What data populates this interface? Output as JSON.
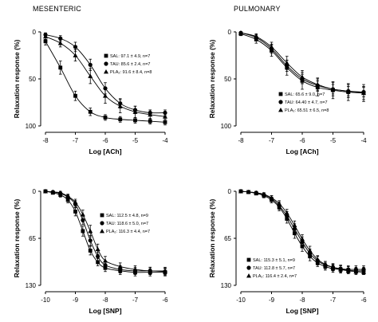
{
  "panel_titles": {
    "mesenteric": "MESENTERIC",
    "pulmonary": "PULMONARY"
  },
  "chart_data": [
    {
      "type": "line",
      "xlabel": "Log [ACh]",
      "ylabel": "Relaxation response (%)",
      "xlim": [
        -8,
        -4
      ],
      "ylim": [
        0,
        100
      ],
      "y_inverted": true,
      "xticks": [
        -8,
        -7,
        -6,
        -5,
        -4
      ],
      "yticks": [
        0,
        50,
        100
      ],
      "legend_position": "right-middle",
      "series": [
        {
          "name": "SAL: 97.1 ± 4.9, n=7",
          "marker": "square",
          "x": [
            -8,
            -7.5,
            -7,
            -6.5,
            -6,
            -5.5,
            -5,
            -4.5,
            -4
          ],
          "y": [
            10,
            38,
            68,
            85,
            91,
            93,
            94,
            95,
            96
          ],
          "err": [
            4,
            7,
            5,
            4,
            3,
            3,
            3,
            3,
            3
          ]
        },
        {
          "name": "TAU: 85.6 ± 2.4, n=7",
          "marker": "circle",
          "x": [
            -8,
            -7.5,
            -7,
            -6.5,
            -6,
            -5.5,
            -5,
            -4.5,
            -4
          ],
          "y": [
            3,
            7,
            16,
            35,
            60,
            76,
            83,
            86,
            86
          ],
          "err": [
            2,
            3,
            5,
            6,
            6,
            5,
            4,
            3,
            3
          ]
        },
        {
          "name": "PLA₂: 91.6 ± 8.4, n=8",
          "marker": "triangle",
          "x": [
            -8,
            -7.5,
            -7,
            -6.5,
            -6,
            -5.5,
            -5,
            -4.5,
            -4
          ],
          "y": [
            5,
            12,
            25,
            47,
            68,
            79,
            85,
            88,
            90
          ],
          "err": [
            3,
            4,
            6,
            8,
            8,
            7,
            6,
            5,
            5
          ]
        }
      ]
    },
    {
      "type": "line",
      "xlabel": "Log [ACh]",
      "ylabel": "Relaxation response (%)",
      "xlim": [
        -8,
        -4
      ],
      "ylim": [
        0,
        100
      ],
      "y_inverted": true,
      "xticks": [
        -8,
        -7,
        -6,
        -5,
        -4
      ],
      "yticks": [
        0,
        50,
        100
      ],
      "legend_position": "right-middle",
      "series": [
        {
          "name": "SAL: 65.6 ± 9.0, n=7",
          "marker": "square",
          "x": [
            -8,
            -7.5,
            -7,
            -6.5,
            -6,
            -5.5,
            -5,
            -4.5,
            -4
          ],
          "y": [
            2,
            8,
            20,
            38,
            52,
            59,
            62,
            64,
            65
          ],
          "err": [
            2,
            4,
            6,
            8,
            9,
            9,
            9,
            9,
            9
          ]
        },
        {
          "name": "TAU: 64.40 ± 4.7, n=7",
          "marker": "circle",
          "x": [
            -8,
            -7.5,
            -7,
            -6.5,
            -6,
            -5.5,
            -5,
            -4.5,
            -4
          ],
          "y": [
            1,
            6,
            18,
            36,
            50,
            57,
            61,
            63,
            64
          ],
          "err": [
            2,
            3,
            5,
            6,
            5,
            5,
            5,
            5,
            5
          ]
        },
        {
          "name": "PLA₂: 65.51 ± 6.5, n=8",
          "marker": "triangle",
          "x": [
            -8,
            -7.5,
            -7,
            -6.5,
            -6,
            -5.5,
            -5,
            -4.5,
            -4
          ],
          "y": [
            1,
            5,
            16,
            33,
            48,
            56,
            61,
            63,
            65
          ],
          "err": [
            2,
            3,
            5,
            7,
            7,
            7,
            7,
            7,
            7
          ]
        }
      ]
    },
    {
      "type": "line",
      "xlabel": "Log [SNP]",
      "ylabel": "Relaxation response (%)",
      "xlim": [
        -10,
        -6
      ],
      "ylim": [
        0,
        130
      ],
      "y_inverted": true,
      "xticks": [
        -10,
        -9,
        -8,
        -7,
        -6
      ],
      "yticks": [
        0,
        65,
        130
      ],
      "legend_position": "right-middle",
      "series": [
        {
          "name": "SAL: 112.5 ± 4.8, n=9",
          "marker": "square",
          "x": [
            -10,
            -9.75,
            -9.5,
            -9.25,
            -9,
            -8.75,
            -8.5,
            -8.25,
            -8,
            -7.5,
            -7,
            -6.5,
            -6
          ],
          "y": [
            0,
            2,
            5,
            12,
            28,
            55,
            82,
            98,
            106,
            110,
            112,
            112,
            112
          ],
          "err": [
            1,
            2,
            3,
            4,
            6,
            7,
            6,
            5,
            5,
            5,
            5,
            5,
            5
          ]
        },
        {
          "name": "TAU: 118.6 ± 5.0, n=7",
          "marker": "circle",
          "x": [
            -10,
            -9.75,
            -9.5,
            -9.25,
            -9,
            -8.75,
            -8.5,
            -8.25,
            -8,
            -7.5,
            -7,
            -6.5,
            -6
          ],
          "y": [
            0,
            1,
            3,
            8,
            18,
            40,
            68,
            90,
            102,
            108,
            110,
            110,
            111
          ],
          "err": [
            1,
            2,
            2,
            3,
            5,
            6,
            7,
            6,
            5,
            5,
            5,
            5,
            5
          ]
        },
        {
          "name": "PLA₂: 116.3 ± 4.4, n=7",
          "marker": "triangle",
          "x": [
            -10,
            -9.75,
            -9.5,
            -9.25,
            -9,
            -8.75,
            -8.5,
            -8.25,
            -8,
            -7.5,
            -7,
            -6.5,
            -6
          ],
          "y": [
            0,
            1,
            2,
            7,
            15,
            32,
            55,
            80,
            96,
            104,
            108,
            110,
            110
          ],
          "err": [
            1,
            2,
            2,
            3,
            4,
            6,
            8,
            7,
            6,
            5,
            5,
            5,
            5
          ]
        }
      ]
    },
    {
      "type": "line",
      "xlabel": "Log [SNP]",
      "ylabel": "Relaxation response (%)",
      "xlim": [
        -10,
        -6
      ],
      "ylim": [
        0,
        130
      ],
      "y_inverted": true,
      "xticks": [
        -10,
        -9,
        -8,
        -7,
        -6
      ],
      "yticks": [
        0,
        65,
        130
      ],
      "legend_position": "bottom-left",
      "series": [
        {
          "name": "SAL: 115.3 ± 5.1, n=9",
          "marker": "square",
          "x": [
            -10,
            -9.75,
            -9.5,
            -9.25,
            -9,
            -8.75,
            -8.5,
            -8.25,
            -8,
            -7.75,
            -7.5,
            -7.25,
            -7,
            -6.75,
            -6.5,
            -6.25,
            -6
          ],
          "y": [
            0,
            1,
            3,
            6,
            12,
            22,
            38,
            58,
            76,
            90,
            99,
            104,
            107,
            108,
            109,
            110,
            110
          ],
          "err": [
            1,
            1,
            2,
            3,
            4,
            5,
            6,
            7,
            7,
            6,
            5,
            5,
            5,
            5,
            5,
            5,
            5
          ]
        },
        {
          "name": "TAU: 112.8 ± 5.7, n=7",
          "marker": "circle",
          "x": [
            -10,
            -9.75,
            -9.5,
            -9.25,
            -9,
            -8.75,
            -8.5,
            -8.25,
            -8,
            -7.75,
            -7.5,
            -7.25,
            -7,
            -6.75,
            -6.5,
            -6.25,
            -6
          ],
          "y": [
            0,
            1,
            2,
            5,
            10,
            20,
            34,
            52,
            70,
            86,
            96,
            102,
            105,
            107,
            108,
            108,
            108
          ],
          "err": [
            1,
            1,
            2,
            3,
            4,
            5,
            6,
            7,
            7,
            6,
            6,
            5,
            5,
            5,
            5,
            5,
            5
          ]
        },
        {
          "name": "PLA₂: 116.4 ± 2.4, n=7",
          "marker": "triangle",
          "x": [
            -10,
            -9.75,
            -9.5,
            -9.25,
            -9,
            -8.75,
            -8.5,
            -8.25,
            -8,
            -7.75,
            -7.5,
            -7.25,
            -7,
            -6.75,
            -6.5,
            -6.25,
            -6
          ],
          "y": [
            0,
            1,
            2,
            4,
            9,
            17,
            30,
            47,
            66,
            82,
            94,
            101,
            105,
            108,
            110,
            111,
            112
          ],
          "err": [
            1,
            1,
            2,
            2,
            3,
            4,
            5,
            6,
            6,
            6,
            5,
            4,
            4,
            3,
            3,
            3,
            3
          ]
        }
      ]
    }
  ]
}
